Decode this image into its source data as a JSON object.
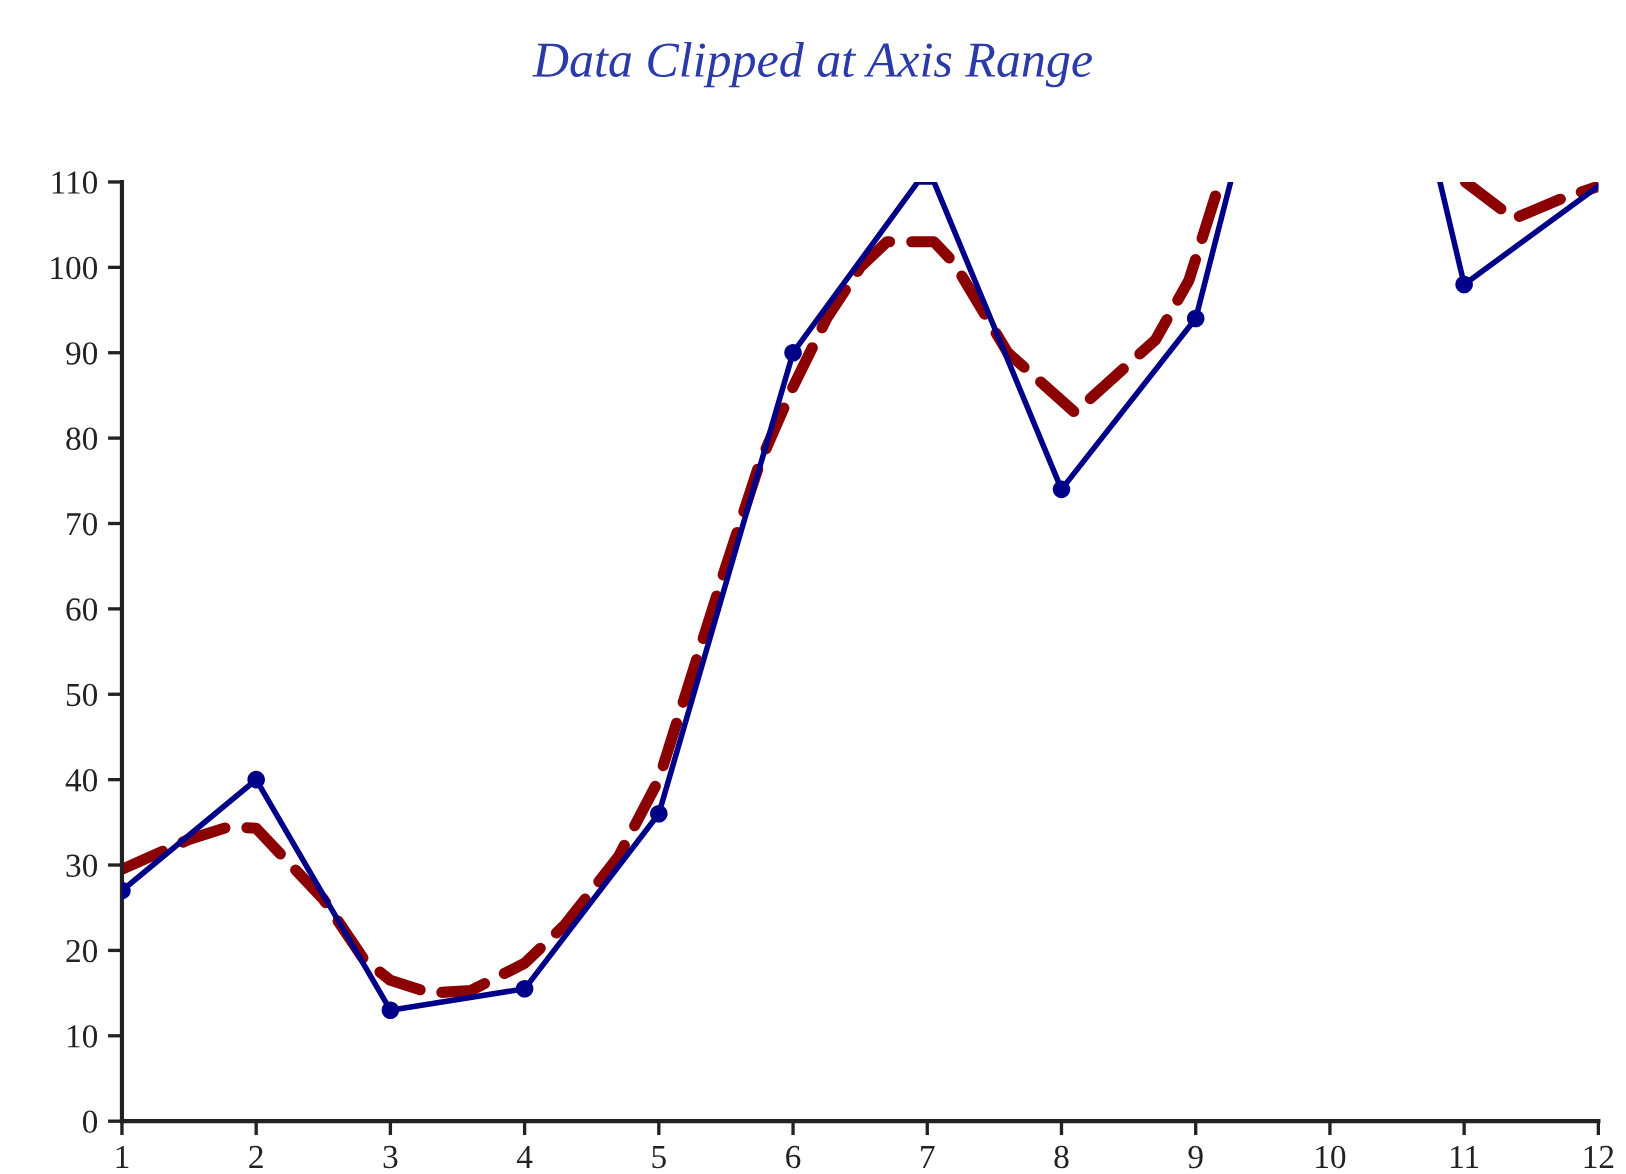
{
  "chart_data": {
    "type": "line",
    "title": "Data Clipped at Axis Range",
    "series": [
      {
        "color": "#8b0000",
        "line_style": "dashed",
        "marker": "none",
        "x": [
          1,
          1.5,
          1.8,
          2,
          2.5,
          2.8,
          3,
          3.3,
          3.6,
          4,
          4.3,
          4.7,
          5,
          5.3,
          5.5,
          5.75,
          6,
          6.25,
          6.5,
          6.7,
          7.05,
          7.2,
          7.6,
          8.1,
          8.7,
          8.95,
          9.18,
          10,
          11.01,
          11.37,
          11.72,
          12
        ],
        "values": [
          29.5,
          33,
          34.5,
          34.3,
          26,
          19,
          16.5,
          15,
          15.3,
          18.5,
          23,
          31,
          40,
          55,
          65,
          77,
          86,
          94,
          100,
          103,
          103,
          100.5,
          90,
          83,
          91.5,
          98.5,
          110,
          null,
          110,
          105.7,
          108,
          109.5
        ]
      },
      {
        "color": "#000088",
        "line_style": "solid",
        "marker": "none",
        "x": [
          1,
          2,
          3,
          4,
          5,
          6,
          6.93,
          7.05,
          8,
          9,
          9.26,
          10,
          10.82,
          11,
          12
        ],
        "values": [
          27,
          40,
          13,
          15.5,
          36,
          90,
          110,
          110,
          74,
          94,
          110,
          null,
          110,
          98,
          109.5
        ]
      },
      {
        "type": "scatter",
        "color": "#000088",
        "marker": "circle",
        "x": [
          1,
          2,
          3,
          4,
          5,
          6,
          8,
          9,
          11
        ],
        "values": [
          27,
          40,
          13,
          15.5,
          36,
          90,
          74,
          94,
          98
        ]
      }
    ],
    "xlim": [
      1,
      12
    ],
    "xticks": [
      1,
      2,
      3,
      4,
      5,
      6,
      7,
      8,
      9,
      10,
      11,
      12
    ],
    "ylim": [
      0,
      110
    ],
    "yticks": [
      0,
      10,
      20,
      30,
      40,
      50,
      60,
      70,
      80,
      90,
      100,
      110
    ],
    "grid": false
  }
}
